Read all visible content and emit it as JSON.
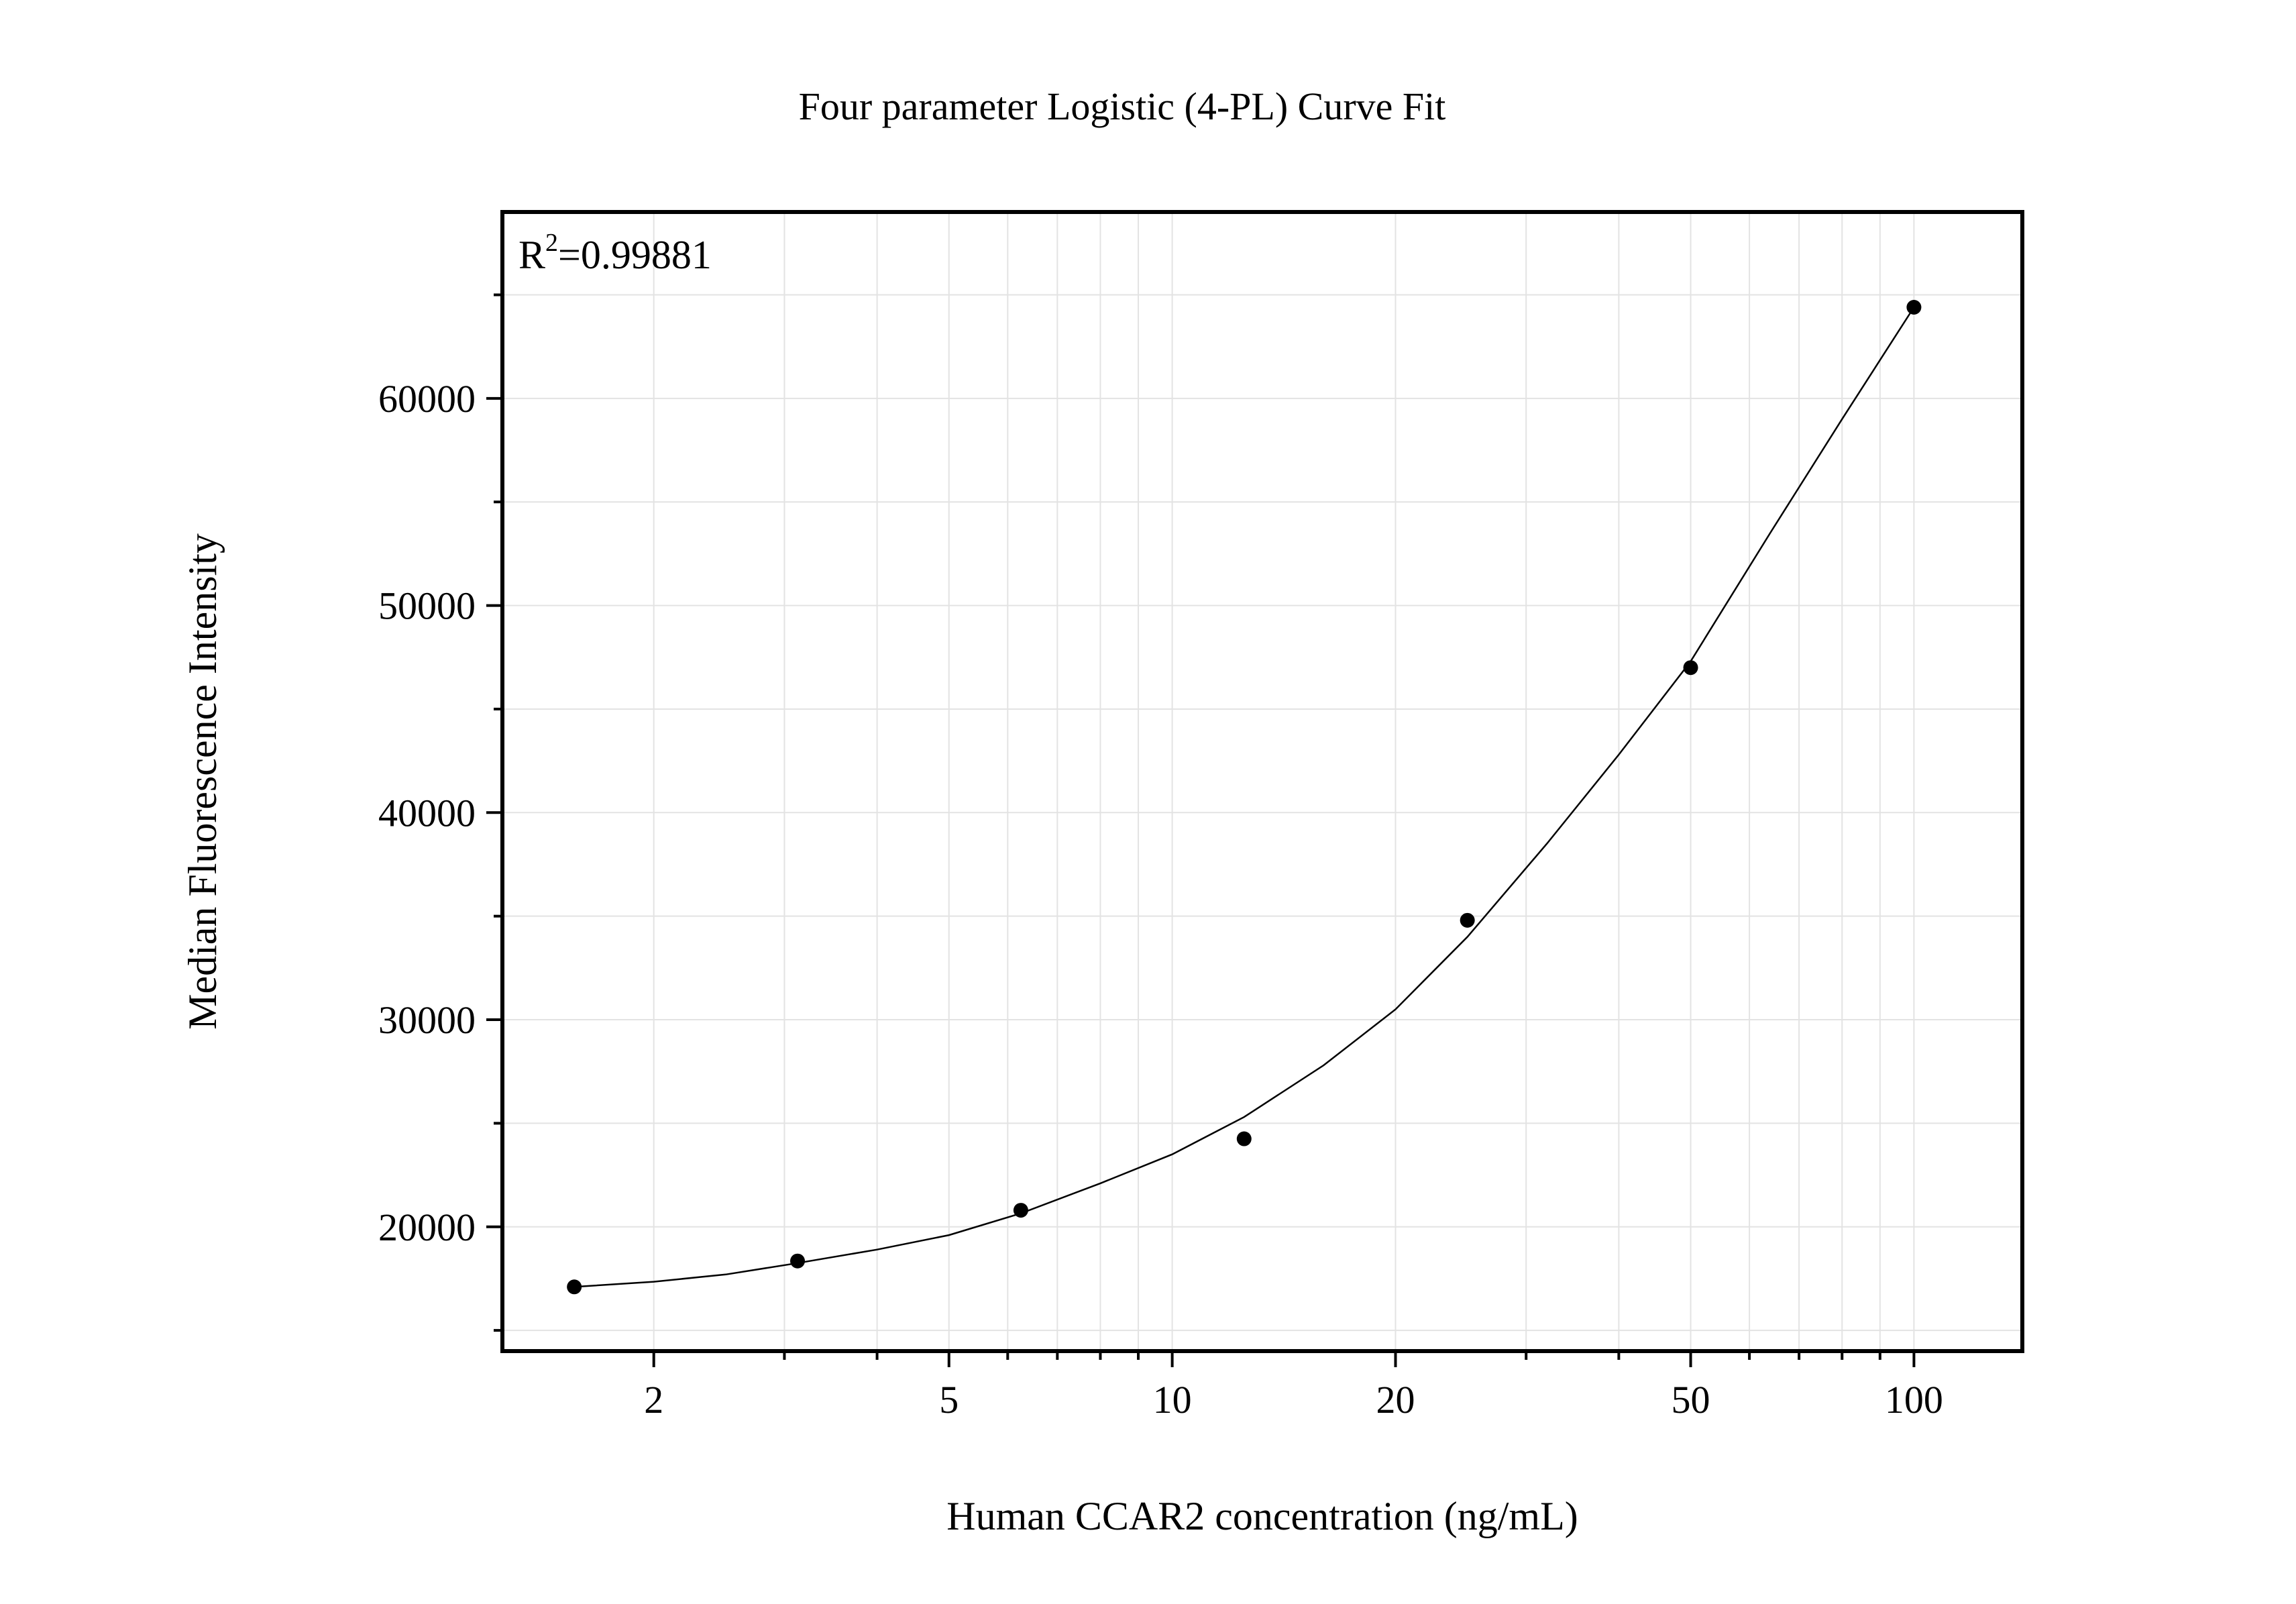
{
  "chart_data": {
    "type": "scatter",
    "title": "Four parameter Logistic (4-PL) Curve Fit",
    "xlabel": "Human CCAR2 concentration (ng/mL)",
    "ylabel": "Median Fluorescence Intensity",
    "x_scale": "log",
    "xlim": [
      1.25,
      140
    ],
    "ylim": [
      14000,
      69000
    ],
    "x_ticks": [
      2,
      5,
      10,
      20,
      50,
      100
    ],
    "x_tick_labels": [
      "2",
      "5",
      "10",
      "20",
      "50",
      "100"
    ],
    "y_ticks": [
      20000,
      30000,
      40000,
      50000,
      60000
    ],
    "y_tick_labels": [
      "20000",
      "30000",
      "40000",
      "50000",
      "60000"
    ],
    "grid": true,
    "annotation": {
      "prefix": "R",
      "superscript": "2",
      "value": "=0.99881"
    },
    "series": [
      {
        "marker": "circle",
        "color": "#000000",
        "points": [
          {
            "x": 1.5625,
            "y": 17100
          },
          {
            "x": 3.125,
            "y": 18350
          },
          {
            "x": 6.25,
            "y": 20800
          },
          {
            "x": 12.5,
            "y": 24250
          },
          {
            "x": 25,
            "y": 34800
          },
          {
            "x": 50,
            "y": 47000
          },
          {
            "x": 100,
            "y": 64400
          }
        ]
      }
    ],
    "fit_curve": {
      "model": "4PL",
      "color": "#000000",
      "points": [
        {
          "x": 1.5625,
          "y": 17100
        },
        {
          "x": 2,
          "y": 17350
        },
        {
          "x": 2.5,
          "y": 17700
        },
        {
          "x": 3.125,
          "y": 18250
        },
        {
          "x": 4,
          "y": 18900
        },
        {
          "x": 5,
          "y": 19600
        },
        {
          "x": 6.25,
          "y": 20650
        },
        {
          "x": 8,
          "y": 22100
        },
        {
          "x": 10,
          "y": 23500
        },
        {
          "x": 12.5,
          "y": 25300
        },
        {
          "x": 16,
          "y": 27800
        },
        {
          "x": 20,
          "y": 30500
        },
        {
          "x": 25,
          "y": 34000
        },
        {
          "x": 32,
          "y": 38500
        },
        {
          "x": 40,
          "y": 42800
        },
        {
          "x": 50,
          "y": 47300
        },
        {
          "x": 64,
          "y": 53500
        },
        {
          "x": 80,
          "y": 59000
        },
        {
          "x": 100,
          "y": 64400
        }
      ]
    }
  }
}
